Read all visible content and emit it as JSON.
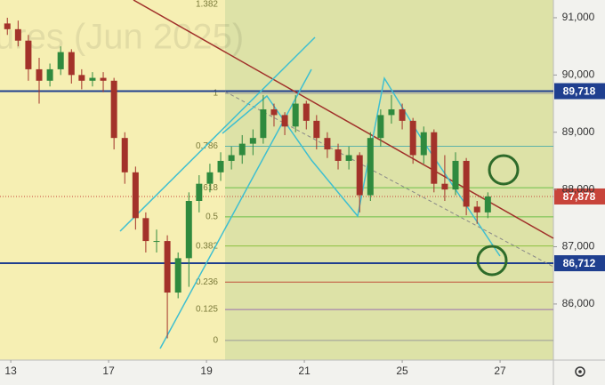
{
  "chart_data": {
    "type": "candlestick",
    "watermark": "ures (Jun 2025)",
    "xlim": [
      -0.22,
      11.09
    ],
    "xticks": [
      {
        "value": 0,
        "label": "13"
      },
      {
        "value": 2,
        "label": "17"
      },
      {
        "value": 4,
        "label": "19"
      },
      {
        "value": 6,
        "label": "21"
      },
      {
        "value": 8,
        "label": "25"
      },
      {
        "value": 10,
        "label": "27"
      }
    ],
    "ylim": [
      85020,
      91310
    ],
    "yticks": [
      {
        "value": 86000,
        "label": "86,000"
      },
      {
        "value": 87000,
        "label": "87,000"
      },
      {
        "value": 88000,
        "label": "88,000"
      },
      {
        "value": 89000,
        "label": "89,000"
      },
      {
        "value": 90000,
        "label": "90,000"
      },
      {
        "value": 91000,
        "label": "91,000"
      }
    ],
    "grid": false,
    "up_color": "#2f8a3e",
    "down_color": "#a3322a",
    "x": [
      -0.07,
      0.15,
      0.36,
      0.58,
      0.8,
      1.02,
      1.24,
      1.45,
      1.67,
      1.89,
      2.11,
      2.33,
      2.55,
      2.76,
      2.98,
      3.2,
      3.42,
      3.64,
      3.85,
      4.07,
      4.29,
      4.51,
      4.73,
      4.95,
      5.16,
      5.38,
      5.6,
      5.82,
      6.04,
      6.25,
      6.47,
      6.69,
      6.91,
      7.13,
      7.35,
      7.56,
      7.78,
      8.0,
      8.22,
      8.44,
      8.65,
      8.87,
      9.09,
      9.31,
      9.53,
      9.75
    ],
    "open": [
      90900,
      90800,
      90600,
      90100,
      89900,
      90100,
      90400,
      90000,
      89900,
      89950,
      89900,
      88900,
      88300,
      87500,
      87100,
      87100,
      86200,
      86800,
      87800,
      88100,
      88300,
      88500,
      88600,
      88800,
      88900,
      89400,
      89300,
      89100,
      89500,
      89200,
      88900,
      88700,
      88500,
      88600,
      87900,
      88900,
      89300,
      89400,
      89200,
      88600,
      89000,
      88100,
      88000,
      88500,
      87700,
      87600
    ],
    "high": [
      91000,
      90950,
      90700,
      90300,
      90200,
      90500,
      90450,
      90100,
      90050,
      90050,
      89950,
      89000,
      88400,
      87600,
      87300,
      87200,
      86900,
      87950,
      88250,
      88450,
      88650,
      88750,
      88950,
      89050,
      89650,
      89500,
      89350,
      89650,
      89550,
      89300,
      89000,
      88800,
      88750,
      88650,
      89000,
      89400,
      89650,
      89500,
      89250,
      89100,
      89050,
      88600,
      88650,
      88550,
      87800,
      87950
    ],
    "low": [
      90700,
      90500,
      89900,
      89500,
      89800,
      90000,
      89850,
      89750,
      89800,
      89700,
      88700,
      88100,
      87300,
      86900,
      86900,
      85400,
      86100,
      86300,
      87600,
      87950,
      88150,
      88350,
      88450,
      88600,
      88800,
      89100,
      88950,
      89000,
      89050,
      88700,
      88550,
      88350,
      88350,
      87600,
      87800,
      88750,
      89150,
      89050,
      88450,
      88450,
      87950,
      87800,
      87900,
      87550,
      87400,
      87500
    ],
    "close": [
      90800,
      90600,
      90100,
      89900,
      90100,
      90400,
      90000,
      89900,
      89950,
      89900,
      88900,
      88300,
      87500,
      87100,
      87100,
      86200,
      86800,
      87800,
      88100,
      88300,
      88500,
      88600,
      88800,
      88900,
      89400,
      89300,
      89100,
      89500,
      89200,
      88900,
      88700,
      88500,
      88600,
      87900,
      88900,
      89300,
      89400,
      89200,
      88600,
      89000,
      88100,
      88000,
      88500,
      87700,
      87600,
      87878
    ],
    "fib_levels": [
      {
        "label": "1.382",
        "value": 91329,
        "color": "#8cbf3f"
      },
      {
        "label": "1",
        "value": 89680,
        "color": "#9a9a9a"
      },
      {
        "label": "0.786",
        "value": 88756,
        "color": "#5fb3a8"
      },
      {
        "label": "0.618",
        "value": 88031,
        "color": "#6cbf4a"
      },
      {
        "label": "0.5",
        "value": 87522,
        "color": "#6cbf4a"
      },
      {
        "label": "0.382",
        "value": 87013,
        "color": "#8cbf3f"
      },
      {
        "label": "0.236",
        "value": 86383,
        "color": "#c0503a"
      },
      {
        "label": "0.125",
        "value": 85904,
        "color": "#9a6fb0"
      },
      {
        "label": "0",
        "value": 85364,
        "color": "#9a9a9a"
      }
    ],
    "price_lines": [
      {
        "value": 89718,
        "label": "89,718",
        "color": "#1f3f8f",
        "style": "solid"
      },
      {
        "value": 87878,
        "label": "87,878",
        "color": "#c8443a",
        "style": "dotted"
      },
      {
        "value": 86712,
        "label": "86,712",
        "color": "#1f3f8f",
        "style": "solid"
      }
    ]
  }
}
